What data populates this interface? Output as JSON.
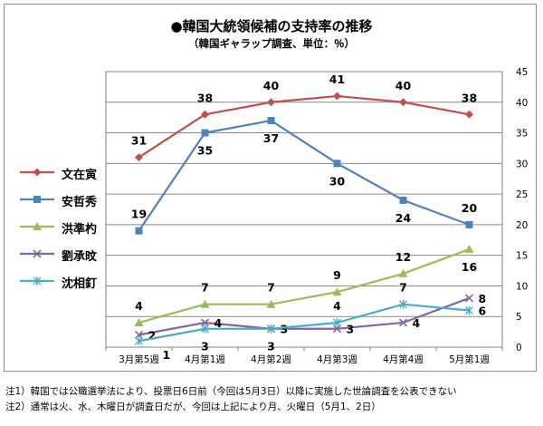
{
  "title": "●韓国大統領候補の支持率の推移",
  "subtitle": "（韓国ギャラップ調査、単位：％）",
  "notes": [
    "注1）韓国では公職選挙法により、投票日6日前（今回は5月3日）以降に実施した世論調査を公表できない",
    "注2）通常は火、水、木曜日が調査日だが、今回は上記により月、火曜日（5月1、2日）"
  ],
  "chart_data": {
    "type": "line",
    "categories": [
      "3月第5週",
      "4月第1週",
      "4月第2週",
      "4月第3週",
      "4月第4週",
      "5月第1週"
    ],
    "ylim": [
      0,
      45
    ],
    "yticks": [
      0,
      5,
      10,
      15,
      20,
      25,
      30,
      35,
      40,
      45
    ],
    "yaxis_position": "right",
    "grid": true,
    "legend_position": "left",
    "series": [
      {
        "name": "文在寅",
        "values": [
          31,
          38,
          40,
          41,
          40,
          38
        ],
        "color": "#c0504d",
        "marker": "diamond",
        "label_pos": "above"
      },
      {
        "name": "安哲秀",
        "values": [
          19,
          35,
          37,
          30,
          24,
          20
        ],
        "color": "#4f81bd",
        "marker": "square",
        "label_pos": [
          "above",
          "below",
          "below",
          "below",
          "below",
          "above"
        ]
      },
      {
        "name": "洪準杓",
        "values": [
          4,
          7,
          7,
          9,
          12,
          16
        ],
        "color": "#9bbb59",
        "marker": "triangle",
        "label_pos": [
          "above",
          "above",
          "above",
          "above",
          "above",
          "below"
        ]
      },
      {
        "name": "劉承旼",
        "values": [
          2,
          4,
          3,
          3,
          4,
          8
        ],
        "color": "#8064a2",
        "marker": "x",
        "label_pos": "right"
      },
      {
        "name": "沈相釘",
        "values": [
          1,
          3,
          3,
          4,
          7,
          6
        ],
        "color": "#4bacc6",
        "marker": "star",
        "label_pos": [
          "below-right",
          "below",
          "below",
          "above",
          "above",
          "right"
        ]
      }
    ]
  }
}
